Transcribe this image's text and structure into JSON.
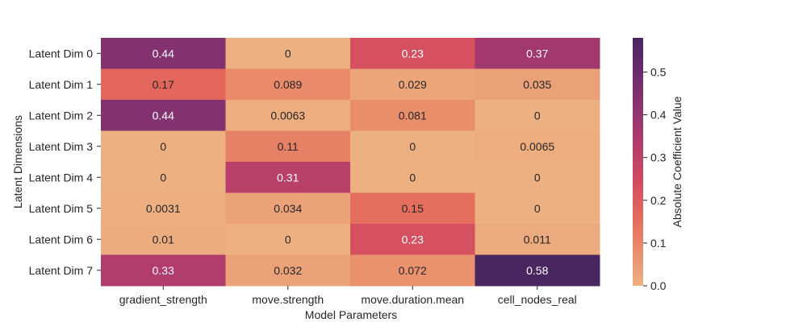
{
  "chart_data": {
    "type": "heatmap",
    "title": "",
    "xlabel": "Model Parameters",
    "ylabel": "Latent Dimensions",
    "x_categories": [
      "gradient_strength",
      "move.strength",
      "move.duration.mean",
      "cell_nodes_real"
    ],
    "y_categories": [
      "Latent Dim 0",
      "Latent Dim 1",
      "Latent Dim 2",
      "Latent Dim 3",
      "Latent Dim 4",
      "Latent Dim 5",
      "Latent Dim 6",
      "Latent Dim 7"
    ],
    "values": [
      [
        0.44,
        0,
        0.23,
        0.37
      ],
      [
        0.17,
        0.089,
        0.029,
        0.035
      ],
      [
        0.44,
        0.0063,
        0.081,
        0
      ],
      [
        0,
        0.11,
        0,
        0.0065
      ],
      [
        0,
        0.31,
        0,
        0
      ],
      [
        0.0031,
        0.034,
        0.15,
        0
      ],
      [
        0.01,
        0,
        0.23,
        0.011
      ],
      [
        0.33,
        0.032,
        0.072,
        0.58
      ]
    ],
    "value_labels": [
      [
        "0.44",
        "0",
        "0.23",
        "0.37"
      ],
      [
        "0.17",
        "0.089",
        "0.029",
        "0.035"
      ],
      [
        "0.44",
        "0.0063",
        "0.081",
        "0"
      ],
      [
        "0",
        "0.11",
        "0",
        "0.0065"
      ],
      [
        "0",
        "0.31",
        "0",
        "0"
      ],
      [
        "0.0031",
        "0.034",
        "0.15",
        "0"
      ],
      [
        "0.01",
        "0",
        "0.23",
        "0.011"
      ],
      [
        "0.33",
        "0.032",
        "0.072",
        "0.58"
      ]
    ],
    "colorbar": {
      "label": "Absolute Coefficient Value",
      "range": [
        0,
        0.58
      ],
      "ticks": [
        "0.0",
        "0.1",
        "0.2",
        "0.3",
        "0.4",
        "0.5"
      ],
      "colormap": "flare",
      "colors": [
        "#edb081",
        "#e98d6b",
        "#e3685c",
        "#d14a61",
        "#b13c6c",
        "#8f3371",
        "#6c2b6d",
        "#4a2660"
      ]
    },
    "annotation_text_colors": {
      "dark": "#262626",
      "light": "#ffffff"
    },
    "grid": false,
    "legend": "colorbar-right"
  }
}
